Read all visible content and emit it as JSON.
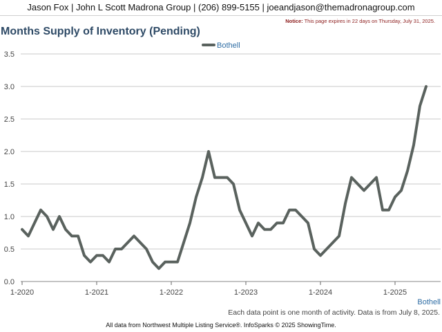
{
  "header": {
    "contact_line": "Jason Fox | John L Scott Madrona Group | (206) 899-5155 | joeandjason@themadronagroup.com"
  },
  "notice": {
    "label": "Notice:",
    "text": "This page expires in 22 days on Thursday, July 31, 2025."
  },
  "footnote": "Each data point is one month of activity. Data is from July 8, 2025.",
  "footer": "All data from Northwest Multiple Listing Service®. InfoSparks © 2025 ShowingTime.",
  "colors": {
    "series": "#5a625e",
    "title": "#2e4a66",
    "grid": "#c8c8c8",
    "accent": "#2e6da4"
  },
  "chart_data": {
    "type": "line",
    "title": "Months Supply of Inventory (Pending)",
    "xlabel": "",
    "ylabel": "",
    "ylim": [
      0,
      3.5
    ],
    "yticks": [
      "0.0",
      "0.5",
      "1.0",
      "1.5",
      "2.0",
      "2.5",
      "3.0",
      "3.5"
    ],
    "xticks": [
      "1-2020",
      "1-2021",
      "1-2022",
      "1-2023",
      "1-2024",
      "1-2025"
    ],
    "x_end_label": "Bothell",
    "grid": true,
    "legend_position": "top-center",
    "start": "2020-01",
    "series": [
      {
        "name": "Bothell",
        "values": [
          0.8,
          0.7,
          0.9,
          1.1,
          1.0,
          0.8,
          1.0,
          0.8,
          0.7,
          0.7,
          0.4,
          0.3,
          0.4,
          0.4,
          0.3,
          0.5,
          0.5,
          0.6,
          0.7,
          0.6,
          0.5,
          0.3,
          0.2,
          0.3,
          0.3,
          0.3,
          0.6,
          0.9,
          1.3,
          1.6,
          2.0,
          1.6,
          1.6,
          1.6,
          1.5,
          1.1,
          0.9,
          0.7,
          0.9,
          0.8,
          0.8,
          0.9,
          0.9,
          1.1,
          1.1,
          1.0,
          0.9,
          0.5,
          0.4,
          0.5,
          0.6,
          0.7,
          1.2,
          1.6,
          1.5,
          1.4,
          1.5,
          1.6,
          1.1,
          1.1,
          1.3,
          1.4,
          1.7,
          2.1,
          2.7,
          3.0
        ]
      }
    ]
  }
}
